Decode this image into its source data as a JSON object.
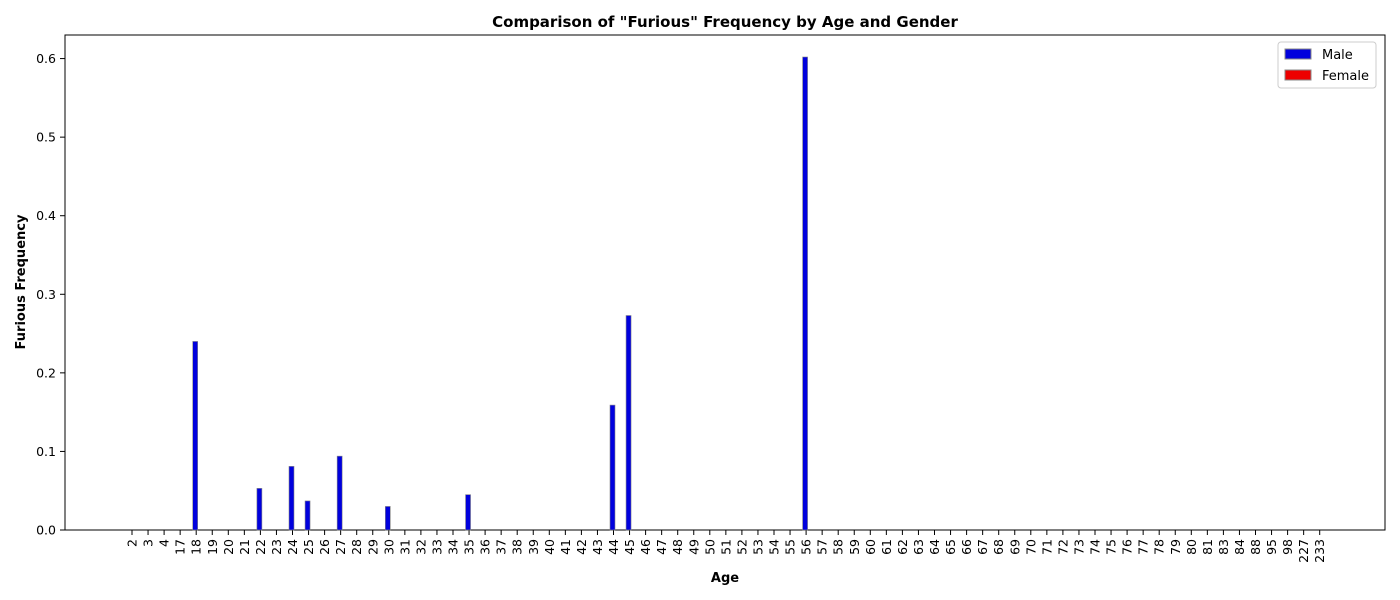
{
  "chart_data": {
    "type": "bar",
    "title": "Comparison of \"Furious\" Frequency by Age and Gender",
    "xlabel": "Age",
    "ylabel": "Furious Frequency",
    "ylim": [
      0,
      0.63
    ],
    "yticks": [
      "0.0",
      "0.1",
      "0.2",
      "0.3",
      "0.4",
      "0.5",
      "0.6"
    ],
    "categories": [
      "2",
      "3",
      "4",
      "17",
      "18",
      "19",
      "20",
      "21",
      "22",
      "23",
      "24",
      "25",
      "26",
      "27",
      "28",
      "29",
      "30",
      "31",
      "32",
      "33",
      "34",
      "35",
      "36",
      "37",
      "38",
      "39",
      "40",
      "41",
      "42",
      "43",
      "44",
      "45",
      "46",
      "47",
      "48",
      "49",
      "50",
      "51",
      "52",
      "53",
      "54",
      "55",
      "56",
      "57",
      "58",
      "59",
      "60",
      "61",
      "62",
      "63",
      "64",
      "65",
      "66",
      "67",
      "68",
      "69",
      "70",
      "71",
      "72",
      "73",
      "74",
      "75",
      "76",
      "77",
      "78",
      "79",
      "80",
      "81",
      "83",
      "84",
      "88",
      "95",
      "98",
      "227",
      "233"
    ],
    "series": [
      {
        "name": "Male",
        "color": "#0000dd",
        "values": [
          0,
          0,
          0,
          0,
          0.24,
          0,
          0,
          0,
          0.053,
          0,
          0.081,
          0.037,
          0,
          0.094,
          0,
          0,
          0.03,
          0,
          0,
          0,
          0,
          0.045,
          0,
          0,
          0,
          0,
          0,
          0,
          0,
          0,
          0.159,
          0.273,
          0,
          0,
          0,
          0,
          0,
          0,
          0,
          0,
          0,
          0,
          0.602,
          0,
          0,
          0,
          0,
          0,
          0,
          0,
          0,
          0,
          0,
          0,
          0,
          0,
          0,
          0,
          0,
          0,
          0,
          0,
          0,
          0,
          0,
          0,
          0,
          0,
          0,
          0,
          0,
          0,
          0,
          0,
          0
        ]
      },
      {
        "name": "Female",
        "color": "#ee0000",
        "values": [
          0,
          0,
          0,
          0,
          0,
          0,
          0,
          0,
          0,
          0,
          0,
          0,
          0,
          0,
          0,
          0,
          0,
          0,
          0,
          0,
          0,
          0,
          0,
          0,
          0,
          0,
          0,
          0,
          0,
          0,
          0,
          0,
          0,
          0,
          0,
          0,
          0,
          0,
          0,
          0,
          0,
          0,
          0,
          0,
          0,
          0,
          0,
          0,
          0,
          0,
          0,
          0,
          0,
          0,
          0,
          0,
          0,
          0,
          0,
          0,
          0,
          0,
          0,
          0,
          0,
          0,
          0,
          0,
          0,
          0,
          0,
          0,
          0,
          0,
          0
        ]
      }
    ],
    "legend_position": "top-right",
    "grid": false
  }
}
